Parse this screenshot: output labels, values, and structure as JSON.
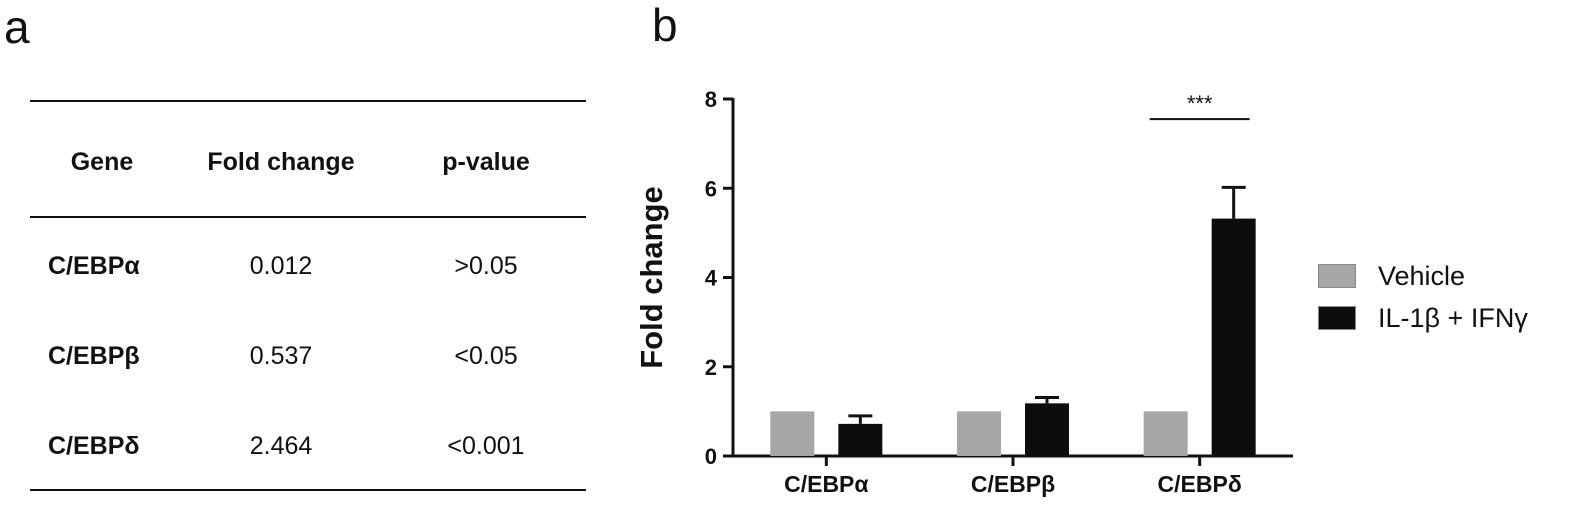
{
  "panels": {
    "a": "a",
    "b": "b"
  },
  "table": {
    "headers": [
      "Gene",
      "Fold change",
      "p-value"
    ],
    "rows": [
      {
        "gene": "C/EBPα",
        "fold_change": "0.012",
        "p_value": ">0.05"
      },
      {
        "gene": "C/EBPβ",
        "fold_change": "0.537",
        "p_value": "<0.05"
      },
      {
        "gene": "C/EBPδ",
        "fold_change": "2.464",
        "p_value": "<0.001"
      }
    ]
  },
  "chart_data": {
    "type": "bar",
    "categories": [
      "C/EBPα",
      "C/EBPβ",
      "C/EBPδ"
    ],
    "series": [
      {
        "name": "Vehicle",
        "values": [
          1.0,
          1.0,
          1.0
        ],
        "color": "#a6a6a6"
      },
      {
        "name": "IL-1β + IFNγ",
        "values": [
          0.72,
          1.18,
          5.32
        ],
        "errors": [
          0.18,
          0.13,
          0.7
        ],
        "color": "#0d0d0d"
      }
    ],
    "ylabel": "Fold change",
    "xlabel": "",
    "ylim": [
      0,
      8
    ],
    "yticks": [
      "0",
      "2",
      "4",
      "6",
      "8"
    ],
    "annotations": [
      {
        "text": "***",
        "category": "C/EBPδ"
      }
    ],
    "legend_position": "right",
    "grid": false
  }
}
